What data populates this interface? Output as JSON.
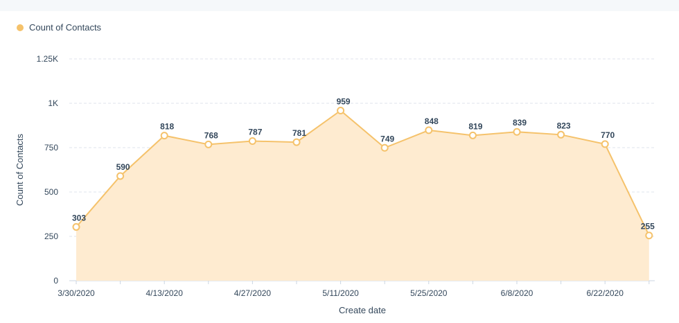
{
  "legend": {
    "label": "Count of Contacts"
  },
  "chart_data": {
    "type": "area",
    "x": [
      "3/30/2020",
      "4/6/2020",
      "4/13/2020",
      "4/20/2020",
      "4/27/2020",
      "5/4/2020",
      "5/11/2020",
      "5/18/2020",
      "5/25/2020",
      "6/1/2020",
      "6/8/2020",
      "6/15/2020",
      "6/22/2020",
      "6/29/2020"
    ],
    "x_tick_labels": [
      "3/30/2020",
      "4/13/2020",
      "4/27/2020",
      "5/11/2020",
      "5/25/2020",
      "6/8/2020",
      "6/22/2020"
    ],
    "series": [
      {
        "name": "Count of Contacts",
        "values": [
          303,
          590,
          818,
          768,
          787,
          781,
          959,
          749,
          848,
          819,
          839,
          823,
          770,
          255
        ]
      }
    ],
    "y_ticks": [
      0,
      250,
      500,
      750,
      1000,
      1250
    ],
    "y_tick_labels": [
      "0",
      "250",
      "500",
      "750",
      "1K",
      "1.25K"
    ],
    "ylim": [
      0,
      1250
    ],
    "xlabel": "Create date",
    "ylabel": "Count of Contacts",
    "grid": true,
    "legend_position": "top-left",
    "colors": {
      "line": "#f5c26b",
      "fill": "#feebd0",
      "marker_fill": "#ffffff",
      "grid": "#dfe3eb",
      "axis": "#cbd6e2"
    }
  }
}
